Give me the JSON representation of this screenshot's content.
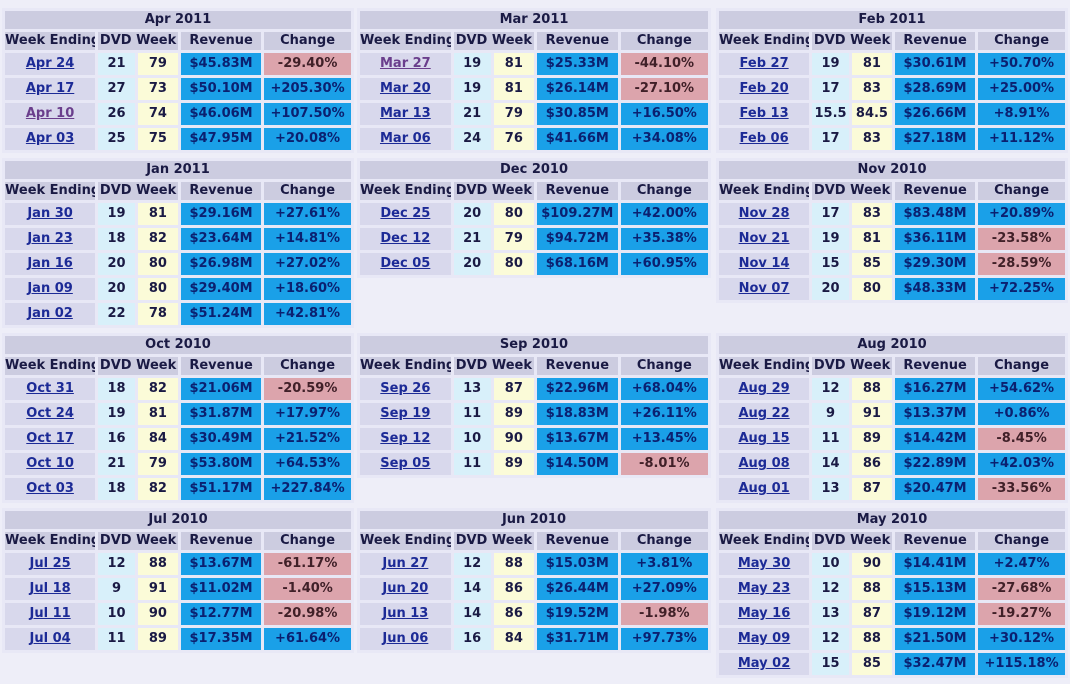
{
  "headers": {
    "week_ending": "Week Ending",
    "dvd_week": "DVD Week",
    "revenue": "Revenue",
    "change": "Change"
  },
  "months": [
    {
      "title": "Apr 2011",
      "rows": [
        {
          "week": "Apr 24",
          "a": "21",
          "b": "79",
          "rev": "$45.83M",
          "chg": "-29.40%",
          "dir": "neg"
        },
        {
          "week": "Apr 17",
          "a": "27",
          "b": "73",
          "rev": "$50.10M",
          "chg": "+205.30%",
          "dir": "pos"
        },
        {
          "week": "Apr 10",
          "a": "26",
          "b": "74",
          "rev": "$46.06M",
          "chg": "+107.50%",
          "dir": "pos",
          "visited": true
        },
        {
          "week": "Apr 03",
          "a": "25",
          "b": "75",
          "rev": "$47.95M",
          "chg": "+20.08%",
          "dir": "pos"
        }
      ]
    },
    {
      "title": "Mar 2011",
      "rows": [
        {
          "week": "Mar 27",
          "a": "19",
          "b": "81",
          "rev": "$25.33M",
          "chg": "-44.10%",
          "dir": "neg",
          "visited": true
        },
        {
          "week": "Mar 20",
          "a": "19",
          "b": "81",
          "rev": "$26.14M",
          "chg": "-27.10%",
          "dir": "neg"
        },
        {
          "week": "Mar 13",
          "a": "21",
          "b": "79",
          "rev": "$30.85M",
          "chg": "+16.50%",
          "dir": "pos"
        },
        {
          "week": "Mar 06",
          "a": "24",
          "b": "76",
          "rev": "$41.66M",
          "chg": "+34.08%",
          "dir": "pos"
        }
      ]
    },
    {
      "title": "Feb 2011",
      "rows": [
        {
          "week": "Feb 27",
          "a": "19",
          "b": "81",
          "rev": "$30.61M",
          "chg": "+50.70%",
          "dir": "pos"
        },
        {
          "week": "Feb 20",
          "a": "17",
          "b": "83",
          "rev": "$28.69M",
          "chg": "+25.00%",
          "dir": "pos"
        },
        {
          "week": "Feb 13",
          "a": "15.5",
          "b": "84.5",
          "rev": "$26.66M",
          "chg": "+8.91%",
          "dir": "pos"
        },
        {
          "week": "Feb 06",
          "a": "17",
          "b": "83",
          "rev": "$27.18M",
          "chg": "+11.12%",
          "dir": "pos"
        }
      ]
    },
    {
      "title": "Jan 2011",
      "rows": [
        {
          "week": "Jan 30",
          "a": "19",
          "b": "81",
          "rev": "$29.16M",
          "chg": "+27.61%",
          "dir": "pos"
        },
        {
          "week": "Jan 23",
          "a": "18",
          "b": "82",
          "rev": "$23.64M",
          "chg": "+14.81%",
          "dir": "pos"
        },
        {
          "week": "Jan 16",
          "a": "20",
          "b": "80",
          "rev": "$26.98M",
          "chg": "+27.02%",
          "dir": "pos"
        },
        {
          "week": "Jan 09",
          "a": "20",
          "b": "80",
          "rev": "$29.40M",
          "chg": "+18.60%",
          "dir": "pos"
        },
        {
          "week": "Jan 02",
          "a": "22",
          "b": "78",
          "rev": "$51.24M",
          "chg": "+42.81%",
          "dir": "pos"
        }
      ]
    },
    {
      "title": "Dec 2010",
      "rows": [
        {
          "week": "Dec 25",
          "a": "20",
          "b": "80",
          "rev": "$109.27M",
          "chg": "+42.00%",
          "dir": "pos"
        },
        {
          "week": "Dec 12",
          "a": "21",
          "b": "79",
          "rev": "$94.72M",
          "chg": "+35.38%",
          "dir": "pos"
        },
        {
          "week": "Dec 05",
          "a": "20",
          "b": "80",
          "rev": "$68.16M",
          "chg": "+60.95%",
          "dir": "pos"
        }
      ]
    },
    {
      "title": "Nov 2010",
      "rows": [
        {
          "week": "Nov 28",
          "a": "17",
          "b": "83",
          "rev": "$83.48M",
          "chg": "+20.89%",
          "dir": "pos"
        },
        {
          "week": "Nov 21",
          "a": "19",
          "b": "81",
          "rev": "$36.11M",
          "chg": "-23.58%",
          "dir": "neg"
        },
        {
          "week": "Nov 14",
          "a": "15",
          "b": "85",
          "rev": "$29.30M",
          "chg": "-28.59%",
          "dir": "neg"
        },
        {
          "week": "Nov 07",
          "a": "20",
          "b": "80",
          "rev": "$48.33M",
          "chg": "+72.25%",
          "dir": "pos"
        }
      ]
    },
    {
      "title": "Oct 2010",
      "rows": [
        {
          "week": "Oct 31",
          "a": "18",
          "b": "82",
          "rev": "$21.06M",
          "chg": "-20.59%",
          "dir": "neg"
        },
        {
          "week": "Oct 24",
          "a": "19",
          "b": "81",
          "rev": "$31.87M",
          "chg": "+17.97%",
          "dir": "pos"
        },
        {
          "week": "Oct 17",
          "a": "16",
          "b": "84",
          "rev": "$30.49M",
          "chg": "+21.52%",
          "dir": "pos"
        },
        {
          "week": "Oct 10",
          "a": "21",
          "b": "79",
          "rev": "$53.80M",
          "chg": "+64.53%",
          "dir": "pos"
        },
        {
          "week": "Oct 03",
          "a": "18",
          "b": "82",
          "rev": "$51.17M",
          "chg": "+227.84%",
          "dir": "pos"
        }
      ]
    },
    {
      "title": "Sep 2010",
      "rows": [
        {
          "week": "Sep 26",
          "a": "13",
          "b": "87",
          "rev": "$22.96M",
          "chg": "+68.04%",
          "dir": "pos"
        },
        {
          "week": "Sep 19",
          "a": "11",
          "b": "89",
          "rev": "$18.83M",
          "chg": "+26.11%",
          "dir": "pos"
        },
        {
          "week": "Sep 12",
          "a": "10",
          "b": "90",
          "rev": "$13.67M",
          "chg": "+13.45%",
          "dir": "pos"
        },
        {
          "week": "Sep 05",
          "a": "11",
          "b": "89",
          "rev": "$14.50M",
          "chg": "-8.01%",
          "dir": "neg"
        }
      ]
    },
    {
      "title": "Aug 2010",
      "rows": [
        {
          "week": "Aug 29",
          "a": "12",
          "b": "88",
          "rev": "$16.27M",
          "chg": "+54.62%",
          "dir": "pos"
        },
        {
          "week": "Aug 22",
          "a": "9",
          "b": "91",
          "rev": "$13.37M",
          "chg": "+0.86%",
          "dir": "pos"
        },
        {
          "week": "Aug 15",
          "a": "11",
          "b": "89",
          "rev": "$14.42M",
          "chg": "-8.45%",
          "dir": "neg"
        },
        {
          "week": "Aug 08",
          "a": "14",
          "b": "86",
          "rev": "$22.89M",
          "chg": "+42.03%",
          "dir": "pos"
        },
        {
          "week": "Aug 01",
          "a": "13",
          "b": "87",
          "rev": "$20.47M",
          "chg": "-33.56%",
          "dir": "neg"
        }
      ]
    },
    {
      "title": "Jul 2010",
      "rows": [
        {
          "week": "Jul 25",
          "a": "12",
          "b": "88",
          "rev": "$13.67M",
          "chg": "-61.17%",
          "dir": "neg"
        },
        {
          "week": "Jul 18",
          "a": "9",
          "b": "91",
          "rev": "$11.02M",
          "chg": "-1.40%",
          "dir": "neg"
        },
        {
          "week": "Jul 11",
          "a": "10",
          "b": "90",
          "rev": "$12.77M",
          "chg": "-20.98%",
          "dir": "neg"
        },
        {
          "week": "Jul 04",
          "a": "11",
          "b": "89",
          "rev": "$17.35M",
          "chg": "+61.64%",
          "dir": "pos"
        }
      ]
    },
    {
      "title": "Jun 2010",
      "rows": [
        {
          "week": "Jun 27",
          "a": "12",
          "b": "88",
          "rev": "$15.03M",
          "chg": "+3.81%",
          "dir": "pos"
        },
        {
          "week": "Jun 20",
          "a": "14",
          "b": "86",
          "rev": "$26.44M",
          "chg": "+27.09%",
          "dir": "pos"
        },
        {
          "week": "Jun 13",
          "a": "14",
          "b": "86",
          "rev": "$19.52M",
          "chg": "-1.98%",
          "dir": "neg"
        },
        {
          "week": "Jun 06",
          "a": "16",
          "b": "84",
          "rev": "$31.71M",
          "chg": "+97.73%",
          "dir": "pos"
        }
      ]
    },
    {
      "title": "May 2010",
      "rows": [
        {
          "week": "May 30",
          "a": "10",
          "b": "90",
          "rev": "$14.41M",
          "chg": "+2.47%",
          "dir": "pos"
        },
        {
          "week": "May 23",
          "a": "12",
          "b": "88",
          "rev": "$15.13M",
          "chg": "-27.68%",
          "dir": "neg"
        },
        {
          "week": "May 16",
          "a": "13",
          "b": "87",
          "rev": "$19.12M",
          "chg": "-19.27%",
          "dir": "neg"
        },
        {
          "week": "May 09",
          "a": "12",
          "b": "88",
          "rev": "$21.50M",
          "chg": "+30.12%",
          "dir": "pos"
        },
        {
          "week": "May 02",
          "a": "15",
          "b": "85",
          "rev": "$32.47M",
          "chg": "+115.18%",
          "dir": "pos"
        }
      ]
    }
  ]
}
